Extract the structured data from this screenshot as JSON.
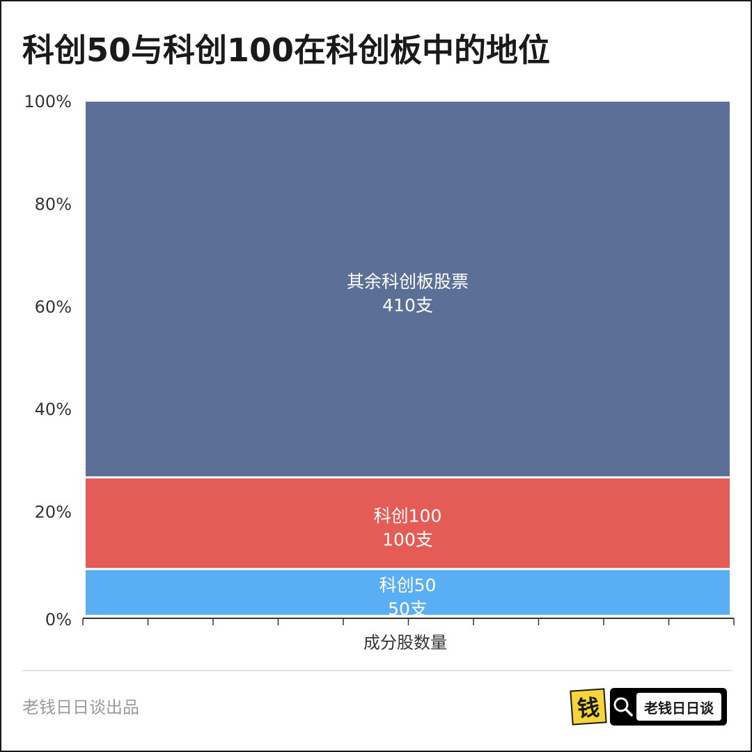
{
  "title": "科创50与科创100在科创板中的地位",
  "chart_data": {
    "type": "bar",
    "stacked": true,
    "normalized": true,
    "categories": [
      ""
    ],
    "xlabel": "成分股数量",
    "ylabel": "",
    "ylim": [
      0,
      100
    ],
    "yticks": [
      "0%",
      "20%",
      "40%",
      "60%",
      "80%",
      "100%"
    ],
    "series": [
      {
        "name": "科创50",
        "values": [
          50
        ],
        "label": "50支",
        "color": "#5aaef3"
      },
      {
        "name": "科创100",
        "values": [
          100
        ],
        "label": "100支",
        "color": "#e55b55"
      },
      {
        "name": "其余科创板股票",
        "values": [
          410
        ],
        "label": "410支",
        "color": "#5c6f96"
      }
    ]
  },
  "footer": {
    "credit": "老钱日日谈出品",
    "logo_char": "钱",
    "search_label": "老钱日日谈",
    "search_icon": "search-icon"
  }
}
